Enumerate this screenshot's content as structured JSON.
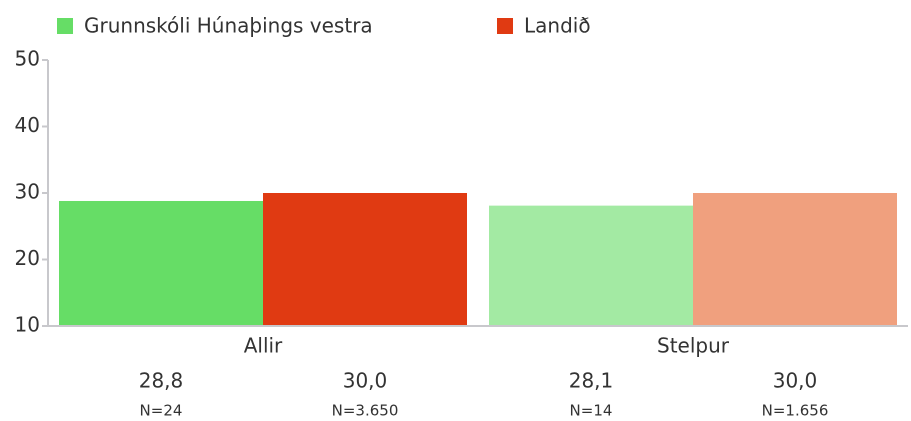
{
  "chart_data": {
    "type": "bar",
    "categories": [
      "Allir",
      "Stelpur"
    ],
    "series": [
      {
        "name": "Grunnskóli Húnaþings vestra",
        "color": "#66dd66",
        "colors": [
          "#66dd66",
          "#a3eaa3"
        ],
        "values": [
          28.8,
          28.1
        ],
        "value_labels": [
          "28,8",
          "28,1"
        ],
        "n_labels": [
          "N=24",
          "N=14"
        ]
      },
      {
        "name": "Landið",
        "color": "#e03a12",
        "colors": [
          "#e03a12",
          "#f0a07e"
        ],
        "values": [
          30.0,
          30.0
        ],
        "value_labels": [
          "30,0",
          "30,0"
        ],
        "n_labels": [
          "N=3.650",
          "N=1.656"
        ]
      }
    ],
    "ylim": [
      10,
      50
    ],
    "yticks": [
      10,
      20,
      30,
      40,
      50
    ],
    "legend": "top-left"
  }
}
